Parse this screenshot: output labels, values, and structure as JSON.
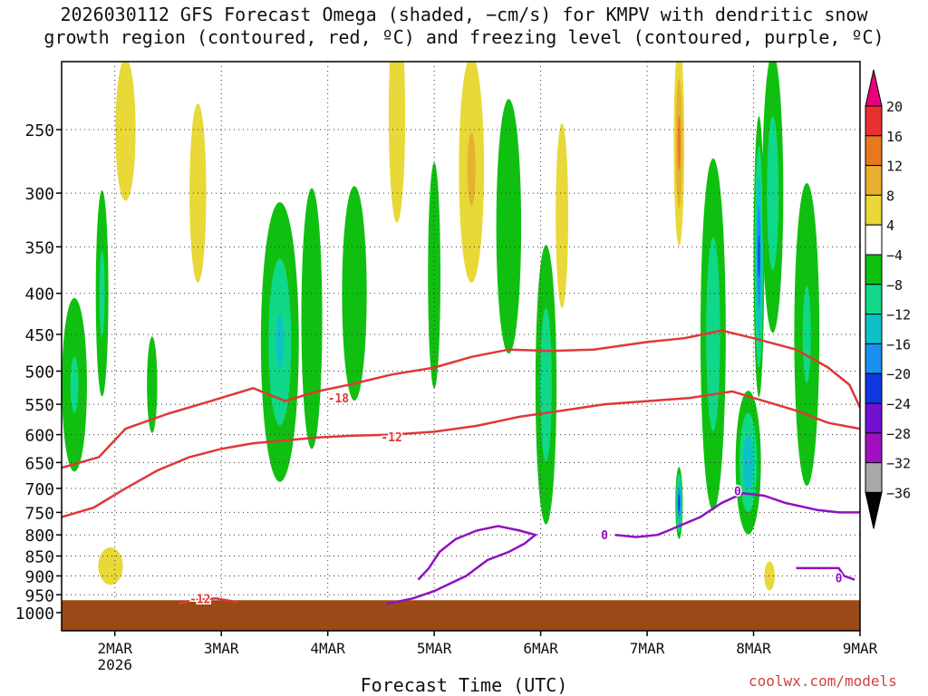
{
  "title": {
    "line1": "2026030112 GFS Forecast Omega (shaded, −cm/s) for KMPV with dendritic snow",
    "line2": "growth region (contoured, red, ºC) and freezing level (contoured, purple, ºC)"
  },
  "credit": "coolwx.com/models",
  "chart_data": {
    "type": "heatmap",
    "title": "2026030112 GFS Forecast Omega (shaded, −cm/s) for KMPV with dendritic snow growth region (contoured, red, ºC) and freezing level (contoured, purple, ºC)",
    "xlabel": "Forecast Time (UTC)",
    "ylabel": "",
    "x_ticks": [
      "2MAR",
      "3MAR",
      "4MAR",
      "5MAR",
      "6MAR",
      "7MAR",
      "8MAR",
      "9MAR"
    ],
    "x_subtick": "2026",
    "xlim_days": [
      1.5,
      9.0
    ],
    "y_ticks": [
      250,
      300,
      350,
      400,
      450,
      500,
      550,
      600,
      650,
      700,
      750,
      800,
      850,
      900,
      950,
      1000
    ],
    "ylim_hPa": [
      200,
      1000
    ],
    "y_scale": "log",
    "grid": true,
    "colorbar": {
      "labels": [
        "20",
        "16",
        "12",
        "8",
        "4",
        "−4",
        "−8",
        "−12",
        "−16",
        "−20",
        "−24",
        "−28",
        "−32",
        "−36"
      ],
      "bands": [
        {
          "range": "> 20",
          "color": "#e8007a"
        },
        {
          "range": "16 to 20",
          "color": "#e83030"
        },
        {
          "range": "12 to 16",
          "color": "#e87820"
        },
        {
          "range": "8 to 12",
          "color": "#e8b030"
        },
        {
          "range": "4 to 8",
          "color": "#e8d838"
        },
        {
          "range": "-4 to 4",
          "color": "#ffffff"
        },
        {
          "range": "-8 to -4",
          "color": "#10c010"
        },
        {
          "range": "-12 to -8",
          "color": "#10d888"
        },
        {
          "range": "-16 to -12",
          "color": "#10c0c8"
        },
        {
          "range": "-20 to -16",
          "color": "#1890f0"
        },
        {
          "range": "-24 to -20",
          "color": "#1038e0"
        },
        {
          "range": "-28 to -24",
          "color": "#7010d0"
        },
        {
          "range": "-32 to -28",
          "color": "#a010c0"
        },
        {
          "range": "-36 to -32",
          "color": "#a8a8a8"
        },
        {
          "range": "< -36",
          "color": "#000000"
        }
      ]
    },
    "omega_cells": [
      {
        "day": 1.62,
        "p": 520,
        "halfwidth_days": 0.12,
        "halfdepth_hPa": 150,
        "omega": -9
      },
      {
        "day": 1.88,
        "p": 400,
        "halfwidth_days": 0.06,
        "halfdepth_hPa": 140,
        "omega": -10
      },
      {
        "day": 2.1,
        "p": 250,
        "halfwidth_days": 0.1,
        "halfdepth_hPa": 60,
        "omega": 5
      },
      {
        "day": 1.96,
        "p": 875,
        "halfwidth_days": 0.12,
        "halfdepth_hPa": 50,
        "omega": 6
      },
      {
        "day": 2.35,
        "p": 520,
        "halfwidth_days": 0.05,
        "halfdepth_hPa": 80,
        "omega": -6
      },
      {
        "day": 2.78,
        "p": 300,
        "halfwidth_days": 0.08,
        "halfdepth_hPa": 90,
        "omega": 8
      },
      {
        "day": 3.55,
        "p": 460,
        "halfwidth_days": 0.18,
        "halfdepth_hPa": 230,
        "omega": -13
      },
      {
        "day": 3.85,
        "p": 430,
        "halfwidth_days": 0.1,
        "halfdepth_hPa": 200,
        "omega": -8
      },
      {
        "day": 4.25,
        "p": 400,
        "halfwidth_days": 0.12,
        "halfdepth_hPa": 150,
        "omega": -6
      },
      {
        "day": 4.65,
        "p": 240,
        "halfwidth_days": 0.08,
        "halfdepth_hPa": 90,
        "omega": 6
      },
      {
        "day": 5.35,
        "p": 280,
        "halfwidth_days": 0.12,
        "halfdepth_hPa": 110,
        "omega": 9
      },
      {
        "day": 5.0,
        "p": 380,
        "halfwidth_days": 0.06,
        "halfdepth_hPa": 150,
        "omega": -7
      },
      {
        "day": 5.7,
        "p": 330,
        "halfwidth_days": 0.12,
        "halfdepth_hPa": 150,
        "omega": -7
      },
      {
        "day": 6.05,
        "p": 520,
        "halfwidth_days": 0.1,
        "halfdepth_hPa": 260,
        "omega": -12
      },
      {
        "day": 6.2,
        "p": 320,
        "halfwidth_days": 0.06,
        "halfdepth_hPa": 100,
        "omega": 7
      },
      {
        "day": 7.3,
        "p": 260,
        "halfwidth_days": 0.05,
        "halfdepth_hPa": 90,
        "omega": 14
      },
      {
        "day": 7.3,
        "p": 730,
        "halfwidth_days": 0.035,
        "halfdepth_hPa": 80,
        "omega": -24
      },
      {
        "day": 7.62,
        "p": 450,
        "halfwidth_days": 0.12,
        "halfdepth_hPa": 300,
        "omega": -12
      },
      {
        "day": 7.95,
        "p": 650,
        "halfwidth_days": 0.12,
        "halfdepth_hPa": 150,
        "omega": -16
      },
      {
        "day": 8.05,
        "p": 360,
        "halfwidth_days": 0.05,
        "halfdepth_hPa": 180,
        "omega": -22
      },
      {
        "day": 8.18,
        "p": 300,
        "halfwidth_days": 0.1,
        "halfdepth_hPa": 150,
        "omega": -12
      },
      {
        "day": 8.5,
        "p": 450,
        "halfwidth_days": 0.12,
        "halfdepth_hPa": 250,
        "omega": -9
      },
      {
        "day": 8.15,
        "p": 900,
        "halfwidth_days": 0.05,
        "halfdepth_hPa": 40,
        "omega": 6
      }
    ],
    "contours": [
      {
        "label": "-18",
        "color": "#e03838",
        "label_at": {
          "day": 4.1,
          "p": 540
        },
        "points": [
          [
            1.5,
            660
          ],
          [
            1.85,
            640
          ],
          [
            2.1,
            590
          ],
          [
            2.5,
            565
          ],
          [
            2.9,
            545
          ],
          [
            3.3,
            525
          ],
          [
            3.6,
            545
          ],
          [
            3.9,
            530
          ],
          [
            4.2,
            520
          ],
          [
            4.6,
            505
          ],
          [
            5.0,
            495
          ],
          [
            5.35,
            480
          ],
          [
            5.7,
            470
          ],
          [
            6.1,
            472
          ],
          [
            6.5,
            470
          ],
          [
            7.0,
            460
          ],
          [
            7.35,
            455
          ],
          [
            7.7,
            445
          ],
          [
            8.0,
            455
          ],
          [
            8.4,
            470
          ],
          [
            8.7,
            495
          ],
          [
            8.9,
            520
          ],
          [
            9.0,
            555
          ]
        ]
      },
      {
        "label": "-12",
        "color": "#e03838",
        "label_at": {
          "day": 4.6,
          "p": 604
        },
        "points": [
          [
            1.5,
            760
          ],
          [
            1.8,
            740
          ],
          [
            2.1,
            700
          ],
          [
            2.4,
            665
          ],
          [
            2.7,
            640
          ],
          [
            3.0,
            625
          ],
          [
            3.3,
            615
          ],
          [
            3.6,
            610
          ],
          [
            3.9,
            605
          ],
          [
            4.2,
            602
          ],
          [
            4.6,
            600
          ],
          [
            5.0,
            595
          ],
          [
            5.4,
            585
          ],
          [
            5.8,
            570
          ],
          [
            6.2,
            560
          ],
          [
            6.6,
            550
          ],
          [
            7.0,
            545
          ],
          [
            7.4,
            540
          ],
          [
            7.8,
            530
          ],
          [
            8.1,
            545
          ],
          [
            8.4,
            560
          ],
          [
            8.7,
            580
          ],
          [
            9.0,
            590
          ]
        ]
      },
      {
        "label": "-12",
        "color": "#e03838",
        "label_at": {
          "day": 2.8,
          "p": 960
        },
        "points": [
          [
            2.6,
            975
          ],
          [
            2.75,
            965
          ],
          [
            2.95,
            960
          ],
          [
            3.05,
            965
          ],
          [
            3.15,
            970
          ]
        ]
      },
      {
        "label": "0",
        "color": "#9010c0",
        "label_at": {
          "day": 6.6,
          "p": 800
        },
        "points": [
          [
            4.55,
            975
          ],
          [
            4.8,
            960
          ],
          [
            5.0,
            940
          ],
          [
            5.3,
            900
          ],
          [
            5.5,
            860
          ],
          [
            5.7,
            840
          ],
          [
            5.85,
            820
          ],
          [
            5.95,
            800
          ],
          [
            5.8,
            790
          ],
          [
            5.6,
            780
          ],
          [
            5.4,
            790
          ],
          [
            5.2,
            810
          ],
          [
            5.05,
            840
          ],
          [
            4.95,
            880
          ],
          [
            4.85,
            910
          ]
        ]
      },
      {
        "label": "0",
        "color": "#9010c0",
        "label_at": {
          "day": 7.85,
          "p": 705
        },
        "points": [
          [
            6.7,
            800
          ],
          [
            6.9,
            805
          ],
          [
            7.1,
            800
          ],
          [
            7.2,
            790
          ],
          [
            7.5,
            760
          ],
          [
            7.7,
            730
          ],
          [
            7.9,
            710
          ],
          [
            8.1,
            715
          ],
          [
            8.3,
            730
          ],
          [
            8.6,
            745
          ],
          [
            8.8,
            750
          ],
          [
            9.0,
            750
          ]
        ]
      },
      {
        "label": "0",
        "color": "#9010c0",
        "label_at": {
          "day": 8.8,
          "p": 905
        },
        "points": [
          [
            8.4,
            880
          ],
          [
            8.6,
            880
          ],
          [
            8.8,
            880
          ],
          [
            8.85,
            900
          ],
          [
            8.95,
            910
          ]
        ]
      }
    ],
    "terrain_top_hPa": 965
  }
}
